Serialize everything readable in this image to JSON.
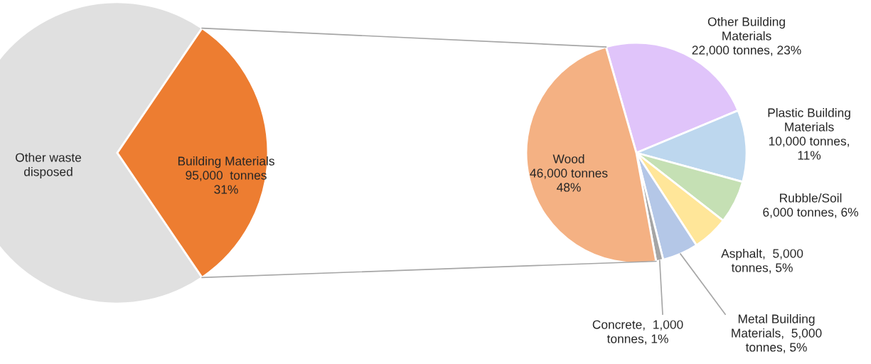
{
  "chart_data": [
    {
      "type": "pie",
      "categories": [
        "Other waste\ndisposed",
        "Building Materials"
      ],
      "values": [
        69,
        31
      ],
      "colors": [
        "#e0e0e0",
        "#ed7d31"
      ],
      "value_labels": [
        null,
        "\n95,000  tonnes\n31%"
      ]
    },
    {
      "type": "pie",
      "categories": [
        "Other Building\nMaterials",
        "Plastic Building\nMaterials",
        "Rubble/Soil",
        "Asphalt",
        "Metal Building\nMaterials",
        "Concrete",
        "Wood"
      ],
      "values": [
        22000,
        10000,
        6000,
        5000,
        5000,
        1000,
        46000
      ],
      "colors": [
        "#e0c4fa",
        "#bdd7ee",
        "#c5e0b4",
        "#ffe699",
        "#b4c7e7",
        "#a5a5a5",
        "#f4b183"
      ],
      "value_labels": [
        "\n22,000 tonnes, 23%",
        "\n10,000 tonnes,\n11%",
        "\n6,000 tonnes, 6%",
        "  5,000\ntonnes, 5%",
        "  5,000\ntonnes, 5%",
        "  1,000\ntonnes, 1%",
        "\n46,000 tonnes\n48%"
      ]
    }
  ]
}
